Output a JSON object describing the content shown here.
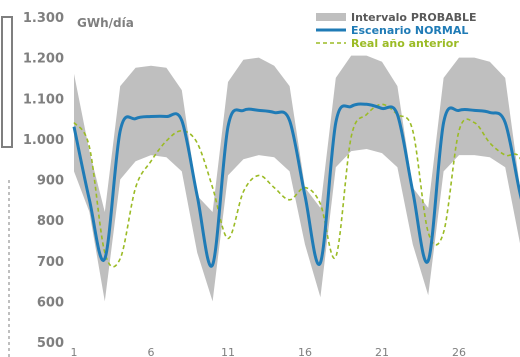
{
  "chart_data": {
    "type": "line",
    "unit_label": "GWh/día",
    "ylim": [
      500,
      1300
    ],
    "y_ticks": [
      "500",
      "600",
      "700",
      "800",
      "900",
      "1.000",
      "1.100",
      "1.200",
      "1.300"
    ],
    "xlim": [
      1,
      31
    ],
    "x_ticks": [
      "1",
      "6",
      "11",
      "16",
      "21",
      "26"
    ],
    "x": [
      1,
      2,
      3,
      4,
      5,
      6,
      7,
      8,
      9,
      10,
      11,
      12,
      13,
      14,
      15,
      16,
      17,
      18,
      19,
      20,
      21,
      22,
      23,
      24,
      25,
      26,
      27,
      28,
      29,
      30,
      31
    ],
    "legend": [
      {
        "label": "Intervalo PROBABLE",
        "color": "#bfbfbf",
        "style": "band"
      },
      {
        "label": "Escenario NORMAL",
        "color": "#1f7bb6",
        "style": "solid"
      },
      {
        "label": "Real año anterior",
        "color": "#9bbb25",
        "style": "dashed"
      }
    ],
    "band": {
      "upper": [
        1160,
        970,
        820,
        1130,
        1175,
        1180,
        1175,
        1120,
        860,
        820,
        1140,
        1195,
        1200,
        1180,
        1130,
        880,
        830,
        1150,
        1205,
        1205,
        1190,
        1130,
        880,
        830,
        1150,
        1200,
        1200,
        1190,
        1150,
        870,
        840
      ],
      "lower": [
        920,
        820,
        600,
        900,
        945,
        960,
        955,
        920,
        720,
        600,
        910,
        950,
        960,
        955,
        920,
        740,
        610,
        930,
        970,
        975,
        965,
        930,
        740,
        615,
        920,
        960,
        960,
        955,
        930,
        735,
        620
      ]
    },
    "series": [
      {
        "name": "Escenario NORMAL",
        "values": [
          1030,
          850,
          705,
          1020,
          1050,
          1055,
          1055,
          1045,
          860,
          690,
          1030,
          1070,
          1070,
          1065,
          1045,
          860,
          695,
          1040,
          1080,
          1085,
          1075,
          1060,
          870,
          700,
          1040,
          1070,
          1070,
          1065,
          1040,
          860,
          720
        ]
      },
      {
        "name": "Real año anterior",
        "values": [
          1040,
          980,
          720,
          705,
          880,
          945,
          995,
          1020,
          990,
          880,
          755,
          870,
          910,
          880,
          850,
          880,
          840,
          710,
          1005,
          1060,
          1085,
          1060,
          1020,
          770,
          770,
          1020,
          1040,
          990,
          960,
          950,
          805
        ]
      }
    ]
  }
}
